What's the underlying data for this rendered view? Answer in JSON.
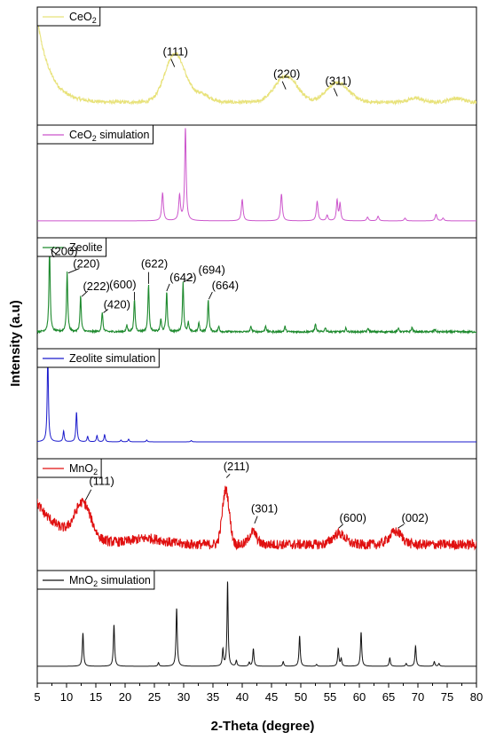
{
  "chart_data": {
    "type": "line",
    "xlabel": "2-Theta (degree)",
    "ylabel": "Intensity (a.u)",
    "xlim": [
      5,
      80
    ],
    "xticks": [
      5,
      10,
      15,
      20,
      25,
      30,
      35,
      40,
      45,
      50,
      55,
      60,
      65,
      70,
      75,
      80
    ],
    "xtick_labels": [
      "5",
      "10",
      "15",
      "20",
      "25",
      "30",
      "35",
      "40",
      "45",
      "50",
      "55",
      "60",
      "65",
      "70",
      "75",
      "80"
    ],
    "grid": false,
    "panels": [
      {
        "id": "ceo2",
        "legend_main": "CeO",
        "legend_sub": "2",
        "legend_rest": "",
        "color": "#e8e27a",
        "baseline": 0.08,
        "noise": 0.018,
        "decay": {
          "amp": 0.85,
          "rate": 0.45
        },
        "peaks": [
          {
            "x": 28.5,
            "h": 0.5,
            "w": 4.0,
            "shape": "gauss"
          },
          {
            "x": 47.5,
            "h": 0.27,
            "w": 4.5,
            "shape": "gauss"
          },
          {
            "x": 56.3,
            "h": 0.2,
            "w": 4.5,
            "shape": "gauss"
          },
          {
            "x": 33.0,
            "h": 0.08,
            "w": 3.5,
            "shape": "gauss"
          },
          {
            "x": 69.5,
            "h": 0.04,
            "w": 3.0,
            "shape": "gauss"
          },
          {
            "x": 76.5,
            "h": 0.04,
            "w": 3.0,
            "shape": "gauss"
          }
        ],
        "labels": [
          {
            "text": "(111)",
            "x": 28.6,
            "y": 0.56
          },
          {
            "text": "(220)",
            "x": 47.6,
            "y": 0.33
          },
          {
            "text": "(311)",
            "x": 56.4,
            "y": 0.26
          }
        ]
      },
      {
        "id": "ceo2-sim",
        "legend_main": "CeO",
        "legend_sub": "2",
        "legend_rest": " simulation",
        "color": "#cc55cc",
        "baseline": 0.02,
        "noise": 0.0,
        "peaks": [
          {
            "x": 26.4,
            "h": 0.3,
            "w": 0.35,
            "shape": "lorentz"
          },
          {
            "x": 29.3,
            "h": 0.27,
            "w": 0.35,
            "shape": "lorentz"
          },
          {
            "x": 30.3,
            "h": 1.0,
            "w": 0.3,
            "shape": "lorentz"
          },
          {
            "x": 40.0,
            "h": 0.23,
            "w": 0.35,
            "shape": "lorentz"
          },
          {
            "x": 46.7,
            "h": 0.29,
            "w": 0.35,
            "shape": "lorentz"
          },
          {
            "x": 52.8,
            "h": 0.21,
            "w": 0.35,
            "shape": "lorentz"
          },
          {
            "x": 54.5,
            "h": 0.06,
            "w": 0.35,
            "shape": "lorentz"
          },
          {
            "x": 56.2,
            "h": 0.22,
            "w": 0.3,
            "shape": "lorentz"
          },
          {
            "x": 56.7,
            "h": 0.18,
            "w": 0.3,
            "shape": "lorentz"
          },
          {
            "x": 61.4,
            "h": 0.04,
            "w": 0.35,
            "shape": "lorentz"
          },
          {
            "x": 63.2,
            "h": 0.05,
            "w": 0.35,
            "shape": "lorentz"
          },
          {
            "x": 67.8,
            "h": 0.03,
            "w": 0.35,
            "shape": "lorentz"
          },
          {
            "x": 73.1,
            "h": 0.07,
            "w": 0.35,
            "shape": "lorentz"
          },
          {
            "x": 74.3,
            "h": 0.03,
            "w": 0.35,
            "shape": "lorentz"
          }
        ],
        "labels": []
      },
      {
        "id": "zeolite",
        "legend_main": "Zeolite",
        "legend_sub": "",
        "legend_rest": "",
        "color": "#1e8a2e",
        "baseline": 0.02,
        "noise": 0.01,
        "peaks": [
          {
            "x": 7.1,
            "h": 0.94,
            "w": 0.25,
            "shape": "lorentz"
          },
          {
            "x": 10.1,
            "h": 0.66,
            "w": 0.25,
            "shape": "lorentz"
          },
          {
            "x": 12.4,
            "h": 0.4,
            "w": 0.25,
            "shape": "lorentz"
          },
          {
            "x": 16.1,
            "h": 0.22,
            "w": 0.25,
            "shape": "lorentz"
          },
          {
            "x": 20.3,
            "h": 0.07,
            "w": 0.25,
            "shape": "lorentz"
          },
          {
            "x": 21.6,
            "h": 0.36,
            "w": 0.25,
            "shape": "lorentz"
          },
          {
            "x": 24.0,
            "h": 0.53,
            "w": 0.25,
            "shape": "lorentz"
          },
          {
            "x": 26.1,
            "h": 0.14,
            "w": 0.25,
            "shape": "lorentz"
          },
          {
            "x": 27.1,
            "h": 0.45,
            "w": 0.25,
            "shape": "lorentz"
          },
          {
            "x": 29.9,
            "h": 0.55,
            "w": 0.25,
            "shape": "lorentz"
          },
          {
            "x": 30.8,
            "h": 0.1,
            "w": 0.25,
            "shape": "lorentz"
          },
          {
            "x": 32.6,
            "h": 0.1,
            "w": 0.25,
            "shape": "lorentz"
          },
          {
            "x": 34.2,
            "h": 0.36,
            "w": 0.25,
            "shape": "lorentz"
          },
          {
            "x": 36.0,
            "h": 0.06,
            "w": 0.25,
            "shape": "lorentz"
          },
          {
            "x": 41.5,
            "h": 0.06,
            "w": 0.25,
            "shape": "lorentz"
          },
          {
            "x": 44.0,
            "h": 0.07,
            "w": 0.25,
            "shape": "lorentz"
          },
          {
            "x": 47.3,
            "h": 0.06,
            "w": 0.25,
            "shape": "lorentz"
          },
          {
            "x": 52.5,
            "h": 0.09,
            "w": 0.25,
            "shape": "lorentz"
          },
          {
            "x": 54.2,
            "h": 0.05,
            "w": 0.25,
            "shape": "lorentz"
          },
          {
            "x": 57.7,
            "h": 0.04,
            "w": 0.25,
            "shape": "lorentz"
          },
          {
            "x": 61.5,
            "h": 0.04,
            "w": 0.25,
            "shape": "lorentz"
          },
          {
            "x": 66.7,
            "h": 0.04,
            "w": 0.25,
            "shape": "lorentz"
          },
          {
            "x": 69.0,
            "h": 0.05,
            "w": 0.25,
            "shape": "lorentz"
          },
          {
            "x": 72.9,
            "h": 0.03,
            "w": 0.25,
            "shape": "lorentz"
          }
        ],
        "labels": [
          {
            "text": "(200)",
            "x": 9.6,
            "y": 0.87,
            "lx1": 7.3,
            "ly1": 0.93,
            "lx2": 8.2,
            "ly2": 0.88
          },
          {
            "text": "(220)",
            "x": 13.4,
            "y": 0.73,
            "lx1": 10.3,
            "ly1": 0.67,
            "lx2": 12.2,
            "ly2": 0.72
          },
          {
            "text": "(222)",
            "x": 15.1,
            "y": 0.48,
            "lx1": 12.6,
            "ly1": 0.41,
            "lx2": 13.6,
            "ly2": 0.47
          },
          {
            "text": "(420)",
            "x": 18.6,
            "y": 0.28,
            "lx1": 16.3,
            "ly1": 0.23,
            "lx2": 17.1,
            "ly2": 0.27
          },
          {
            "text": "(600)",
            "x": 19.6,
            "y": 0.5,
            "lx1": 21.6,
            "ly1": 0.37,
            "lx2": 21.6,
            "ly2": 0.46
          },
          {
            "text": "(622)",
            "x": 25.0,
            "y": 0.73,
            "lx1": 24.0,
            "ly1": 0.55,
            "lx2": 24.0,
            "ly2": 0.68
          },
          {
            "text": "(642)",
            "x": 29.9,
            "y": 0.58,
            "lx1": 27.1,
            "ly1": 0.47,
            "lx2": 27.6,
            "ly2": 0.55
          },
          {
            "text": "(694)",
            "x": 34.8,
            "y": 0.66,
            "lx1": 30.0,
            "ly1": 0.57,
            "lx2": 31.6,
            "ly2": 0.63
          },
          {
            "text": "(664)",
            "x": 37.1,
            "y": 0.49,
            "lx1": 34.3,
            "ly1": 0.38,
            "lx2": 34.9,
            "ly2": 0.46
          }
        ]
      },
      {
        "id": "zeolite-sim",
        "legend_main": "Zeolite simulation",
        "legend_sub": "",
        "legend_rest": "",
        "color": "#1a1acc",
        "baseline": 0.02,
        "noise": 0.0,
        "peaks": [
          {
            "x": 6.8,
            "h": 0.97,
            "w": 0.25,
            "shape": "lorentz"
          },
          {
            "x": 9.5,
            "h": 0.12,
            "w": 0.25,
            "shape": "lorentz"
          },
          {
            "x": 11.7,
            "h": 0.33,
            "w": 0.25,
            "shape": "lorentz"
          },
          {
            "x": 13.6,
            "h": 0.06,
            "w": 0.25,
            "shape": "lorentz"
          },
          {
            "x": 15.2,
            "h": 0.07,
            "w": 0.25,
            "shape": "lorentz"
          },
          {
            "x": 16.5,
            "h": 0.08,
            "w": 0.25,
            "shape": "lorentz"
          },
          {
            "x": 19.3,
            "h": 0.02,
            "w": 0.25,
            "shape": "lorentz"
          },
          {
            "x": 20.6,
            "h": 0.03,
            "w": 0.25,
            "shape": "lorentz"
          },
          {
            "x": 23.7,
            "h": 0.02,
            "w": 0.25,
            "shape": "lorentz"
          },
          {
            "x": 31.3,
            "h": 0.015,
            "w": 0.25,
            "shape": "lorentz"
          }
        ],
        "labels": []
      },
      {
        "id": "mno2",
        "legend_main": "MnO",
        "legend_sub": "2",
        "legend_rest": "",
        "color": "#e01010",
        "baseline": 0.12,
        "noise": 0.055,
        "decay": {
          "amp": 0.45,
          "rate": 0.22
        },
        "peaks": [
          {
            "x": 12.8,
            "h": 0.38,
            "w": 3.2,
            "shape": "gauss"
          },
          {
            "x": 24.0,
            "h": 0.06,
            "w": 6.0,
            "shape": "gauss"
          },
          {
            "x": 37.2,
            "h": 0.6,
            "w": 1.4,
            "shape": "gauss"
          },
          {
            "x": 41.8,
            "h": 0.14,
            "w": 1.5,
            "shape": "gauss"
          },
          {
            "x": 56.5,
            "h": 0.12,
            "w": 2.5,
            "shape": "gauss"
          },
          {
            "x": 66.2,
            "h": 0.14,
            "w": 2.6,
            "shape": "gauss"
          }
        ],
        "labels": [
          {
            "text": "(111)",
            "x": 16.0,
            "y": 0.77,
            "lx1": 13.2,
            "ly1": 0.6,
            "lx2": 14.2,
            "ly2": 0.72
          },
          {
            "text": "(211)",
            "x": 39.0,
            "y": 0.93,
            "lx1": 37.3,
            "ly1": 0.85,
            "lx2": 37.9,
            "ly2": 0.89
          },
          {
            "text": "(301)",
            "x": 43.8,
            "y": 0.47,
            "lx1": 42.1,
            "ly1": 0.35,
            "lx2": 42.6,
            "ly2": 0.43
          },
          {
            "text": "(600)",
            "x": 58.9,
            "y": 0.37,
            "lx1": 56.5,
            "ly1": 0.3,
            "lx2": 57.2,
            "ly2": 0.34
          },
          {
            "text": "(002)",
            "x": 69.5,
            "y": 0.37,
            "lx1": 66.6,
            "ly1": 0.3,
            "lx2": 67.6,
            "ly2": 0.34
          }
        ]
      },
      {
        "id": "mno2-sim",
        "legend_main": "MnO",
        "legend_sub": "2",
        "legend_rest": " simulation",
        "color": "#111111",
        "baseline": 0.02,
        "noise": 0.0,
        "peaks": [
          {
            "x": 12.8,
            "h": 0.36,
            "w": 0.25,
            "shape": "lorentz"
          },
          {
            "x": 18.1,
            "h": 0.45,
            "w": 0.25,
            "shape": "lorentz"
          },
          {
            "x": 25.7,
            "h": 0.04,
            "w": 0.25,
            "shape": "lorentz"
          },
          {
            "x": 28.8,
            "h": 0.63,
            "w": 0.25,
            "shape": "lorentz"
          },
          {
            "x": 36.7,
            "h": 0.18,
            "w": 0.25,
            "shape": "lorentz"
          },
          {
            "x": 37.5,
            "h": 0.92,
            "w": 0.22,
            "shape": "lorentz"
          },
          {
            "x": 39.0,
            "h": 0.06,
            "w": 0.25,
            "shape": "lorentz"
          },
          {
            "x": 41.2,
            "h": 0.04,
            "w": 0.25,
            "shape": "lorentz"
          },
          {
            "x": 41.9,
            "h": 0.19,
            "w": 0.25,
            "shape": "lorentz"
          },
          {
            "x": 47.0,
            "h": 0.05,
            "w": 0.25,
            "shape": "lorentz"
          },
          {
            "x": 49.8,
            "h": 0.33,
            "w": 0.25,
            "shape": "lorentz"
          },
          {
            "x": 52.7,
            "h": 0.02,
            "w": 0.25,
            "shape": "lorentz"
          },
          {
            "x": 56.4,
            "h": 0.19,
            "w": 0.25,
            "shape": "lorentz"
          },
          {
            "x": 56.9,
            "h": 0.08,
            "w": 0.25,
            "shape": "lorentz"
          },
          {
            "x": 60.3,
            "h": 0.37,
            "w": 0.25,
            "shape": "lorentz"
          },
          {
            "x": 65.2,
            "h": 0.09,
            "w": 0.25,
            "shape": "lorentz"
          },
          {
            "x": 68.0,
            "h": 0.03,
            "w": 0.25,
            "shape": "lorentz"
          },
          {
            "x": 69.6,
            "h": 0.22,
            "w": 0.25,
            "shape": "lorentz"
          },
          {
            "x": 72.8,
            "h": 0.05,
            "w": 0.25,
            "shape": "lorentz"
          },
          {
            "x": 73.6,
            "h": 0.03,
            "w": 0.25,
            "shape": "lorentz"
          }
        ],
        "labels": []
      }
    ]
  }
}
